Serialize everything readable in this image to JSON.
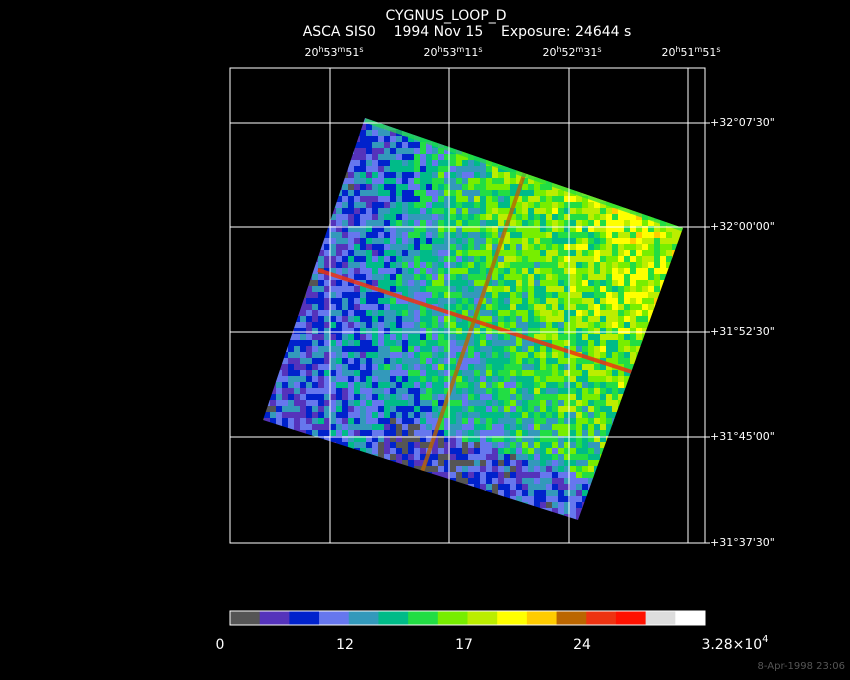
{
  "header": {
    "title": "CYGNUS_LOOP_D",
    "subtitle": "ASCA SIS0    1994 Nov 15    Exposure: 24644 s"
  },
  "ra_labels": [
    [
      "20",
      "h",
      "53",
      "m",
      "51",
      "s"
    ],
    [
      "20",
      "h",
      "53",
      "m",
      "11",
      "s"
    ],
    [
      "20",
      "h",
      "52",
      "m",
      "31",
      "s"
    ],
    [
      "20",
      "h",
      "51",
      "m",
      "51",
      "s"
    ]
  ],
  "dec_labels": [
    "+32°07'30\"",
    "+32°00'00\"",
    "+31°52'30\"",
    "+31°45'00\"",
    "+31°37'30\""
  ],
  "colorbar": {
    "colors": [
      "#555555",
      "#5533bb",
      "#0022cc",
      "#6677ee",
      "#3399bb",
      "#00bb88",
      "#22dd44",
      "#77ee00",
      "#bbee00",
      "#ffff00",
      "#ffcc00",
      "#bb6600",
      "#ee3311",
      "#ff1100",
      "#dddddd",
      "#ffffff"
    ],
    "labels": [
      [
        "0"
      ],
      [
        "12"
      ],
      [
        "17"
      ],
      [
        "24"
      ],
      [
        "3.28×10",
        "4"
      ]
    ]
  },
  "footer": {
    "timestamp": "8-Apr-1998 23:06"
  }
}
